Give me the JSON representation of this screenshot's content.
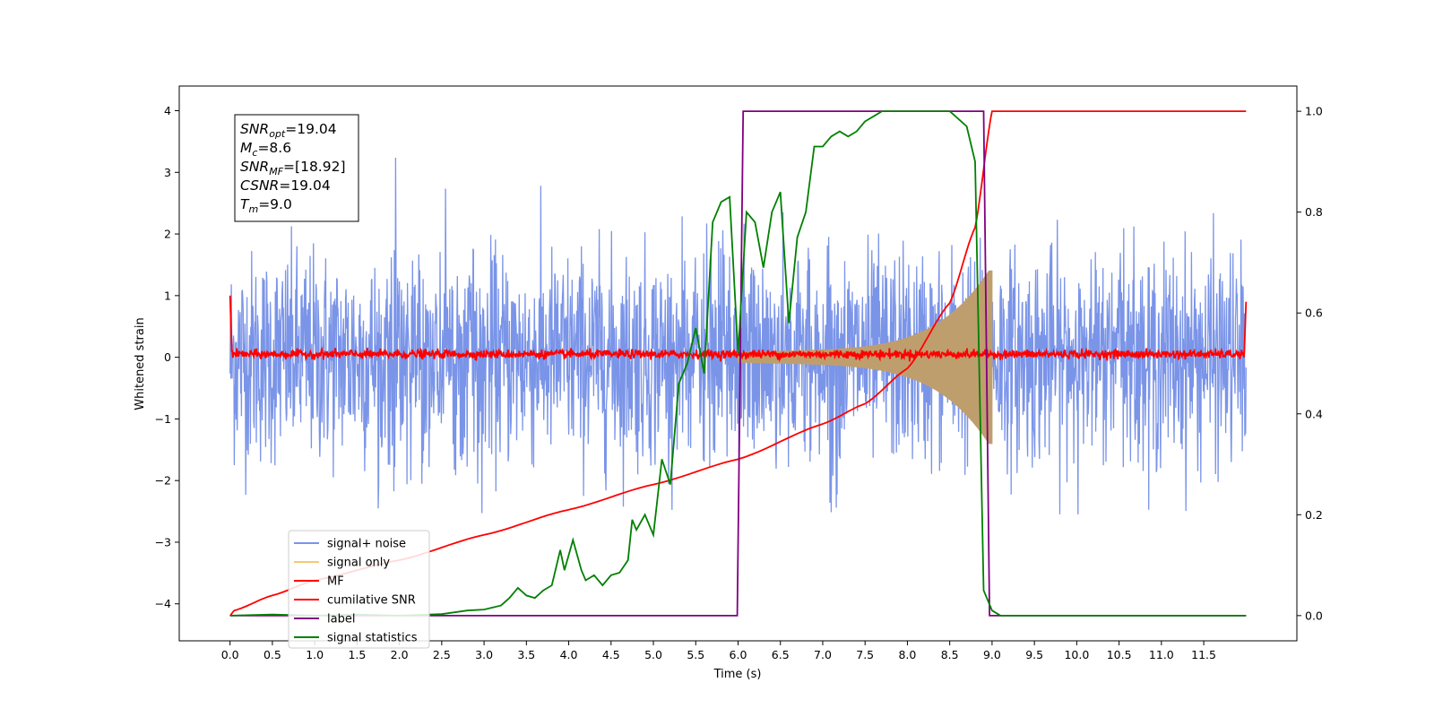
{
  "chart_data": {
    "type": "line",
    "title": "",
    "xlabel": "Time (s)",
    "ylabel": "Whitened strain",
    "xlim": [
      -0.6,
      12.6
    ],
    "ylim": [
      -4.6,
      4.4
    ],
    "y2lim": [
      -0.05,
      1.05
    ],
    "x_ticks": [
      "0.0",
      "0.5",
      "1.0",
      "1.5",
      "2.0",
      "2.5",
      "3.0",
      "3.5",
      "4.0",
      "4.5",
      "5.0",
      "5.5",
      "6.0",
      "6.5",
      "7.0",
      "7.5",
      "8.0",
      "8.5",
      "9.0",
      "9.5",
      "10.0",
      "10.5",
      "11.0",
      "11.5"
    ],
    "y_ticks": [
      "−4",
      "−3",
      "−2",
      "−1",
      "0",
      "1",
      "2",
      "3",
      "4"
    ],
    "y2_ticks": [
      "0.0",
      "0.2",
      "0.4",
      "0.6",
      "0.8",
      "1.0"
    ],
    "grid": false,
    "legend_position": "lower-left",
    "info_box": [
      {
        "main": "SNR",
        "sub": "opt",
        "value": "=19.04"
      },
      {
        "main": "M",
        "sub": "c",
        "value": "=8.6"
      },
      {
        "main": "SNR",
        "sub": "MF",
        "value": "=[18.92]"
      },
      {
        "main": "CSNR",
        "sub": "",
        "value": "=19.04"
      },
      {
        "main": "T",
        "sub": "m",
        "value": "=9.0"
      }
    ],
    "series": [
      {
        "name": "signal+ noise",
        "color": "#7a94e8",
        "axis": "left",
        "kind": "noise-band",
        "x_range": [
          0.0,
          12.0
        ],
        "envelope": [
          -2.6,
          3.5
        ]
      },
      {
        "name": "signal only",
        "color": "#f7c96d",
        "axis": "left",
        "kind": "chirp",
        "start": 6.0,
        "end": 9.0,
        "max_amplitude": 1.3
      },
      {
        "name": "MF",
        "color": "#ff0000",
        "axis": "left",
        "kind": "noisy-zero",
        "x_range": [
          0.0,
          12.0
        ],
        "level": 0.05
      },
      {
        "name": "cumilative SNR",
        "color": "#ff0000",
        "axis": "right",
        "x": [
          0.0,
          0.05,
          0.5,
          1.0,
          2.0,
          3.0,
          4.0,
          5.0,
          6.0,
          7.0,
          7.5,
          8.0,
          8.5,
          8.8,
          9.0,
          12.0
        ],
        "y": [
          0.0,
          0.01,
          0.04,
          0.07,
          0.11,
          0.16,
          0.21,
          0.26,
          0.31,
          0.38,
          0.42,
          0.49,
          0.62,
          0.77,
          1.0,
          1.0
        ]
      },
      {
        "name": "label",
        "color": "#800080",
        "axis": "right",
        "x": [
          0.0,
          5.99,
          6.06,
          8.9,
          8.97,
          12.0
        ],
        "y": [
          0.0,
          0.0,
          1.0,
          1.0,
          0.0,
          0.0
        ]
      },
      {
        "name": "signal statistics",
        "color": "#008000",
        "axis": "right",
        "x": [
          0.0,
          0.5,
          1.0,
          1.5,
          2.0,
          2.5,
          2.8,
          3.0,
          3.2,
          3.3,
          3.4,
          3.5,
          3.6,
          3.7,
          3.8,
          3.9,
          3.95,
          4.05,
          4.15,
          4.2,
          4.3,
          4.4,
          4.5,
          4.6,
          4.7,
          4.75,
          4.8,
          4.9,
          5.0,
          5.1,
          5.2,
          5.3,
          5.4,
          5.5,
          5.6,
          5.7,
          5.8,
          5.9,
          6.0,
          6.1,
          6.2,
          6.3,
          6.4,
          6.5,
          6.6,
          6.7,
          6.8,
          6.9,
          7.0,
          7.1,
          7.2,
          7.3,
          7.4,
          7.5,
          7.6,
          7.7,
          7.8,
          7.9,
          8.0,
          8.1,
          8.2,
          8.3,
          8.5,
          8.7,
          8.8,
          8.9,
          9.0,
          9.1,
          9.2,
          12.0
        ],
        "y": [
          0.0,
          0.002,
          0.0,
          0.002,
          0.0,
          0.003,
          0.01,
          0.012,
          0.02,
          0.035,
          0.055,
          0.04,
          0.035,
          0.05,
          0.06,
          0.13,
          0.09,
          0.15,
          0.09,
          0.07,
          0.08,
          0.06,
          0.08,
          0.085,
          0.11,
          0.19,
          0.17,
          0.2,
          0.16,
          0.31,
          0.26,
          0.46,
          0.5,
          0.57,
          0.48,
          0.78,
          0.82,
          0.83,
          0.52,
          0.8,
          0.78,
          0.69,
          0.8,
          0.84,
          0.58,
          0.75,
          0.8,
          0.93,
          0.93,
          0.95,
          0.96,
          0.95,
          0.96,
          0.98,
          0.99,
          1.0,
          1.0,
          1.0,
          1.0,
          1.0,
          1.0,
          1.0,
          1.0,
          0.97,
          0.9,
          0.05,
          0.01,
          0.0,
          0.0,
          0.0
        ]
      }
    ]
  }
}
